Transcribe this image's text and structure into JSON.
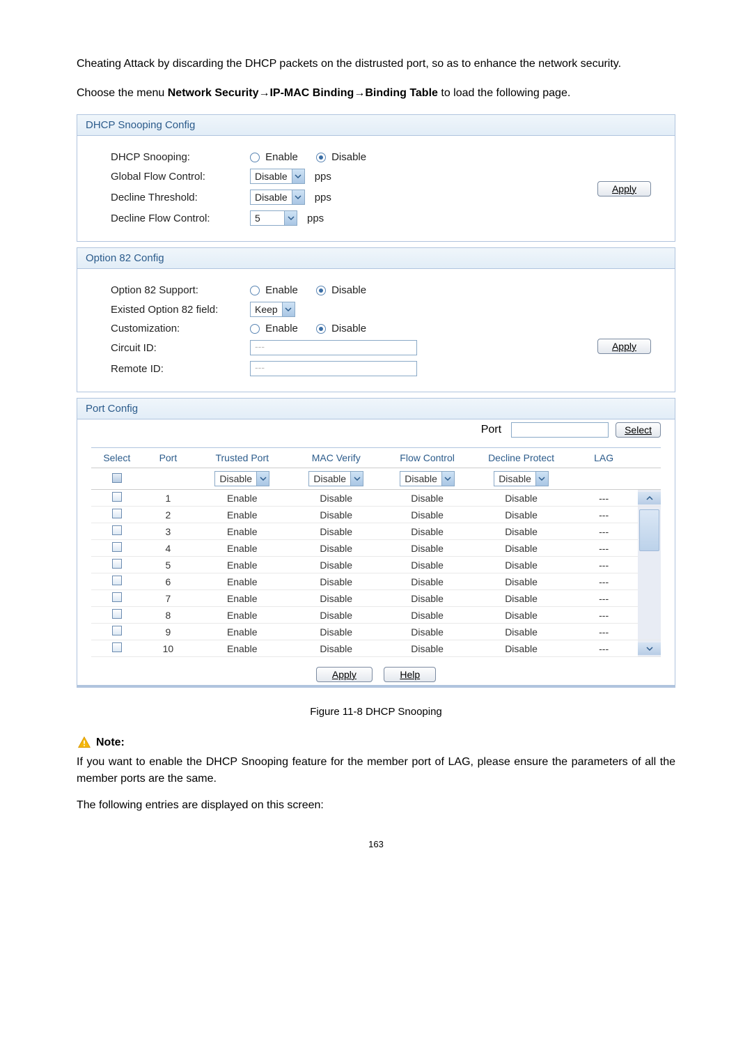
{
  "intro": "Cheating Attack by discarding the DHCP packets on the distrusted port, so as to enhance the network security.",
  "menu_prefix": "Choose the menu ",
  "menu_bold": "Network Security→IP-MAC Binding→Binding Table",
  "menu_suffix": " to load the following page.",
  "panel1": {
    "title": "DHCP Snooping Config",
    "dhcp_snooping_label": "DHCP Snooping:",
    "enable": "Enable",
    "disable": "Disable",
    "global_flow_label": "Global Flow Control:",
    "global_flow_val": "Disable",
    "decline_threshold_label": "Decline Threshold:",
    "decline_threshold_val": "Disable",
    "decline_flow_label": "Decline Flow Control:",
    "decline_flow_val": "5",
    "pps": "pps",
    "apply": "Apply"
  },
  "panel2": {
    "title": "Option 82 Config",
    "support_label": "Option 82 Support:",
    "existed_label": "Existed Option 82 field:",
    "existed_val": "Keep",
    "custom_label": "Customization:",
    "circuit_label": "Circuit ID:",
    "circuit_ph": "---",
    "remote_label": "Remote ID:",
    "remote_ph": "---",
    "enable": "Enable",
    "disable": "Disable",
    "apply": "Apply"
  },
  "panel3": {
    "title": "Port Config",
    "port_label": "Port",
    "select_btn": "Select",
    "headers": {
      "select": "Select",
      "port": "Port",
      "trusted": "Trusted Port",
      "mac": "MAC Verify",
      "flow": "Flow Control",
      "decline": "Decline Protect",
      "lag": "LAG"
    },
    "default_sel": "Disable",
    "rows": [
      {
        "port": "1",
        "trusted": "Enable",
        "mac": "Disable",
        "flow": "Disable",
        "decline": "Disable",
        "lag": "---"
      },
      {
        "port": "2",
        "trusted": "Enable",
        "mac": "Disable",
        "flow": "Disable",
        "decline": "Disable",
        "lag": "---"
      },
      {
        "port": "3",
        "trusted": "Enable",
        "mac": "Disable",
        "flow": "Disable",
        "decline": "Disable",
        "lag": "---"
      },
      {
        "port": "4",
        "trusted": "Enable",
        "mac": "Disable",
        "flow": "Disable",
        "decline": "Disable",
        "lag": "---"
      },
      {
        "port": "5",
        "trusted": "Enable",
        "mac": "Disable",
        "flow": "Disable",
        "decline": "Disable",
        "lag": "---"
      },
      {
        "port": "6",
        "trusted": "Enable",
        "mac": "Disable",
        "flow": "Disable",
        "decline": "Disable",
        "lag": "---"
      },
      {
        "port": "7",
        "trusted": "Enable",
        "mac": "Disable",
        "flow": "Disable",
        "decline": "Disable",
        "lag": "---"
      },
      {
        "port": "8",
        "trusted": "Enable",
        "mac": "Disable",
        "flow": "Disable",
        "decline": "Disable",
        "lag": "---"
      },
      {
        "port": "9",
        "trusted": "Enable",
        "mac": "Disable",
        "flow": "Disable",
        "decline": "Disable",
        "lag": "---"
      },
      {
        "port": "10",
        "trusted": "Enable",
        "mac": "Disable",
        "flow": "Disable",
        "decline": "Disable",
        "lag": "---"
      }
    ],
    "apply": "Apply",
    "help": "Help"
  },
  "figure_caption": "Figure 11-8 DHCP Snooping",
  "note_label": "Note:",
  "note_body": "If you want to enable the DHCP Snooping feature for the member port of LAG, please ensure the parameters of all the member ports are the same.",
  "after_note": "The following entries are displayed on this screen:",
  "page_number": "163",
  "colors": {
    "header_text": "#2b5b8b",
    "border": "#b0c4de",
    "panel_grad_top": "#f0f6fb",
    "panel_grad_bot": "#e2edf7"
  }
}
